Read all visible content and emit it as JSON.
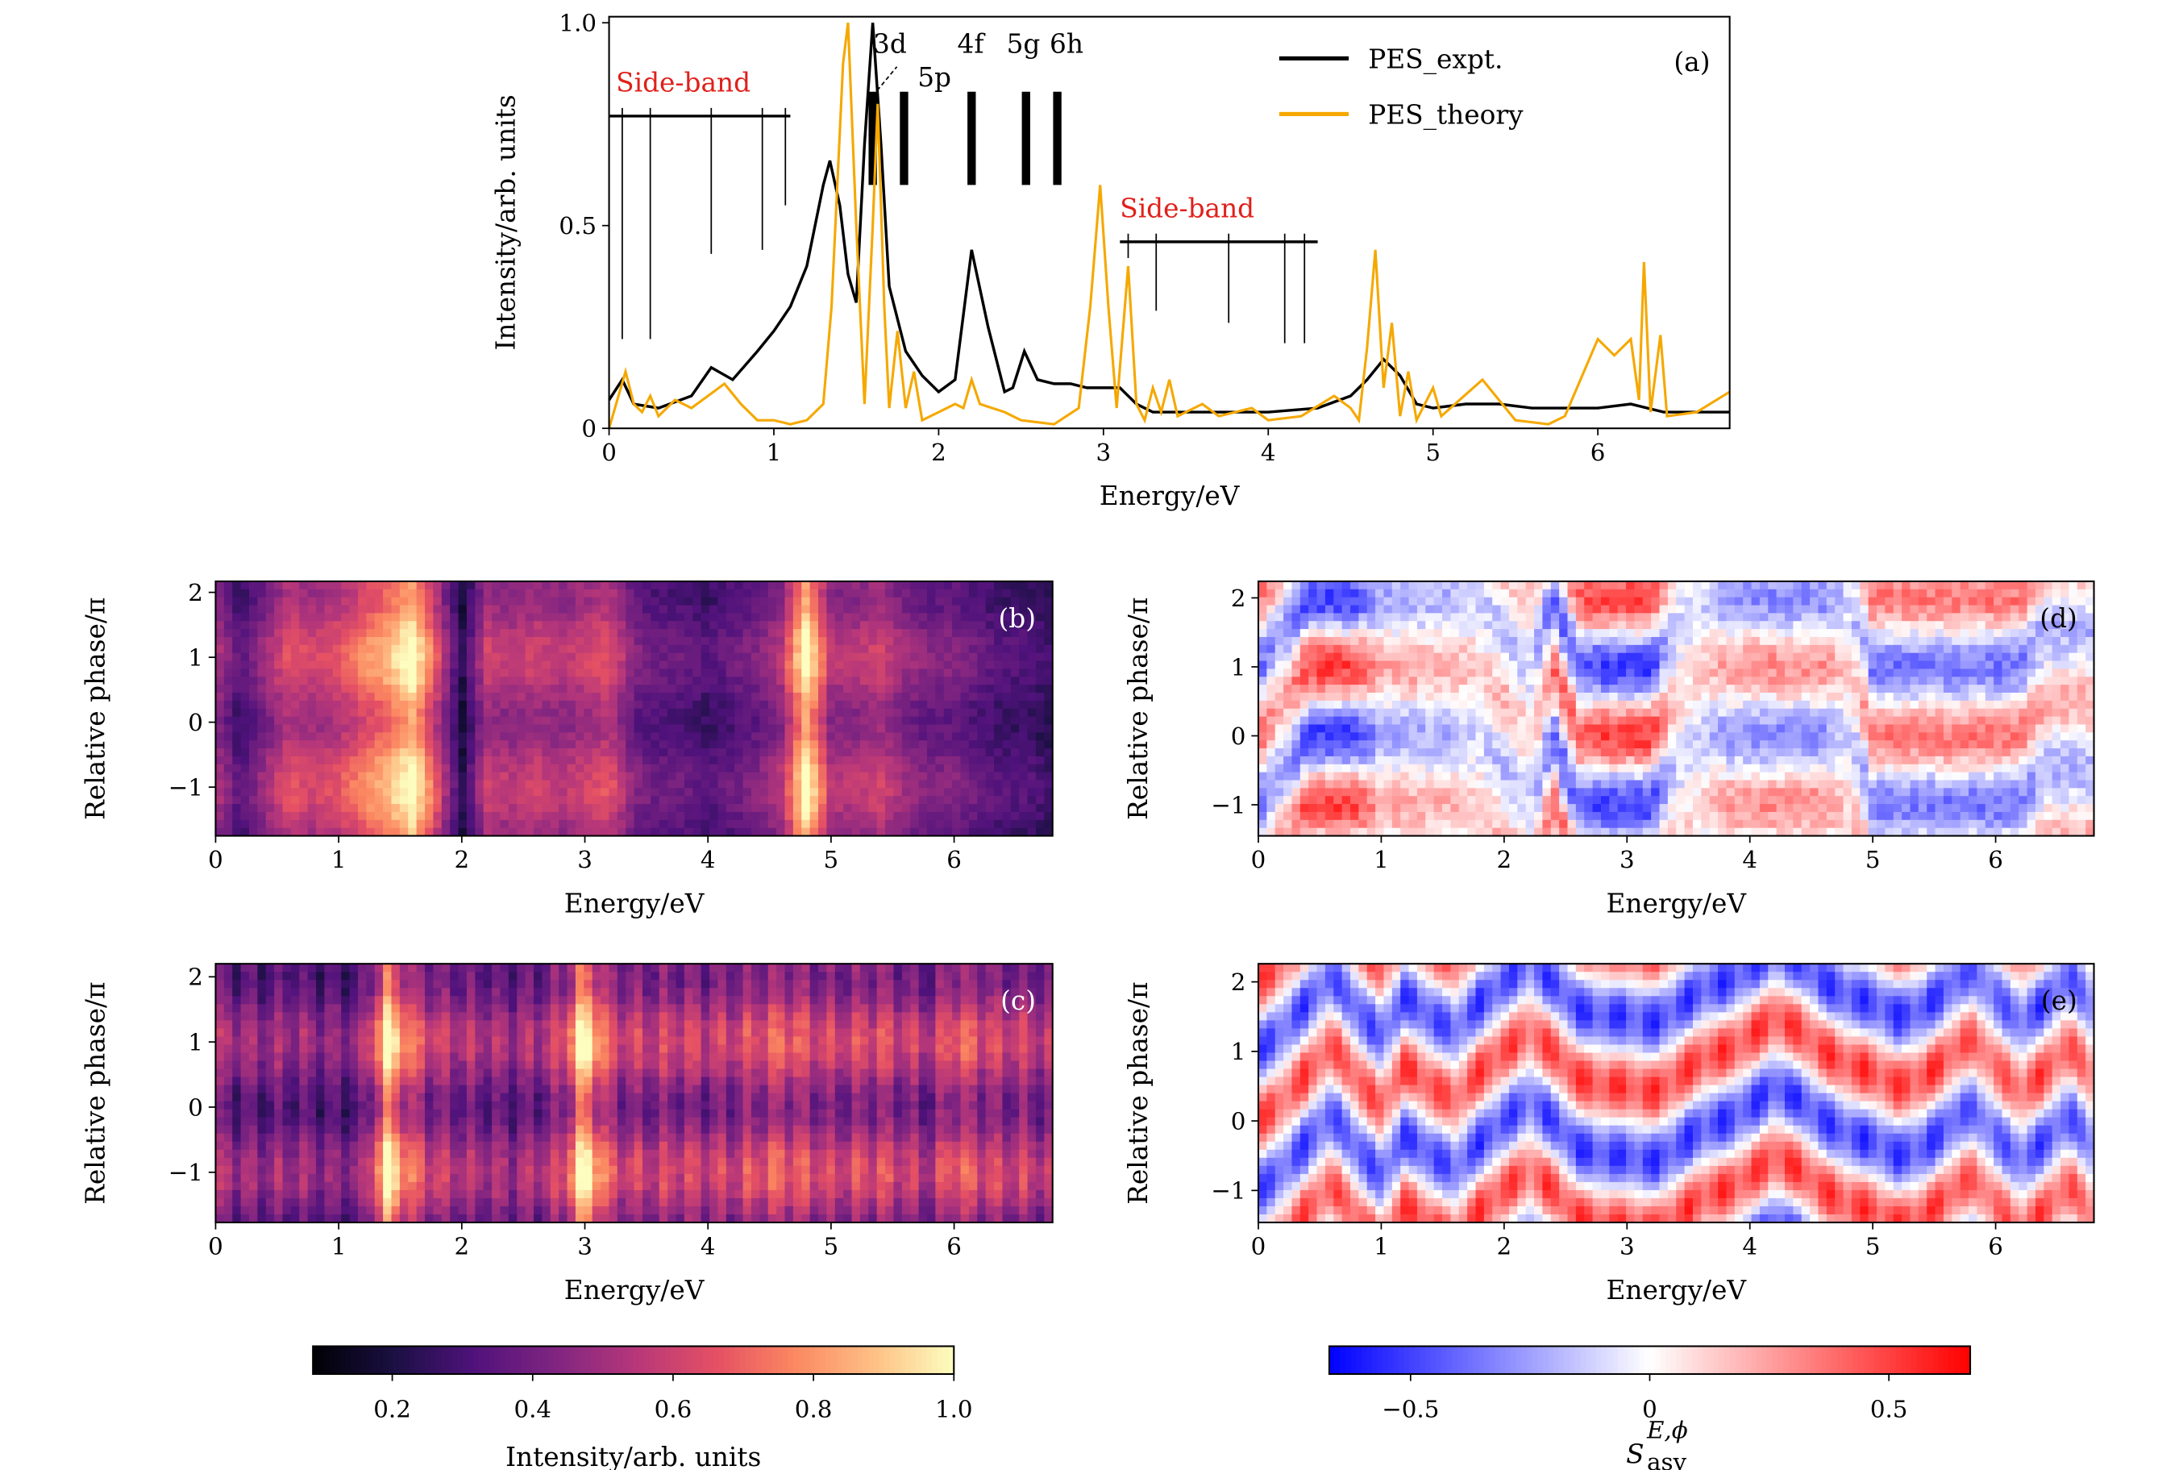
{
  "chart_data": [
    {
      "id": "a",
      "type": "line",
      "panel_label": "(a)",
      "xlabel": "Energy/eV",
      "ylabel": "Intensity/arb. units",
      "xlim": [
        0,
        6.8
      ],
      "ylim": [
        0,
        1.015
      ],
      "xticks": [
        "0",
        "1",
        "2",
        "3",
        "4",
        "5",
        "6"
      ],
      "yticks": [
        "0",
        "0.5",
        "1.0"
      ],
      "legend_position": "top-right",
      "series": [
        {
          "name": "PES_expt.",
          "color": "#000000",
          "points": [
            [
              0,
              0.07
            ],
            [
              0.08,
              0.12
            ],
            [
              0.15,
              0.06
            ],
            [
              0.3,
              0.05
            ],
            [
              0.5,
              0.08
            ],
            [
              0.62,
              0.15
            ],
            [
              0.75,
              0.12
            ],
            [
              0.9,
              0.19
            ],
            [
              1.0,
              0.24
            ],
            [
              1.1,
              0.3
            ],
            [
              1.2,
              0.4
            ],
            [
              1.3,
              0.6
            ],
            [
              1.34,
              0.66
            ],
            [
              1.4,
              0.55
            ],
            [
              1.45,
              0.38
            ],
            [
              1.5,
              0.31
            ],
            [
              1.55,
              0.7
            ],
            [
              1.6,
              1.0
            ],
            [
              1.65,
              0.7
            ],
            [
              1.7,
              0.35
            ],
            [
              1.8,
              0.19
            ],
            [
              1.9,
              0.13
            ],
            [
              2.0,
              0.09
            ],
            [
              2.1,
              0.12
            ],
            [
              2.2,
              0.44
            ],
            [
              2.3,
              0.25
            ],
            [
              2.4,
              0.09
            ],
            [
              2.45,
              0.1
            ],
            [
              2.52,
              0.19
            ],
            [
              2.6,
              0.12
            ],
            [
              2.7,
              0.11
            ],
            [
              2.8,
              0.11
            ],
            [
              2.9,
              0.1
            ],
            [
              3.1,
              0.1
            ],
            [
              3.2,
              0.06
            ],
            [
              3.3,
              0.04
            ],
            [
              3.5,
              0.04
            ],
            [
              4.0,
              0.04
            ],
            [
              4.3,
              0.05
            ],
            [
              4.5,
              0.08
            ],
            [
              4.6,
              0.12
            ],
            [
              4.7,
              0.17
            ],
            [
              4.8,
              0.13
            ],
            [
              4.9,
              0.06
            ],
            [
              5.0,
              0.05
            ],
            [
              5.2,
              0.06
            ],
            [
              5.4,
              0.06
            ],
            [
              5.6,
              0.05
            ],
            [
              6.0,
              0.05
            ],
            [
              6.2,
              0.06
            ],
            [
              6.4,
              0.04
            ],
            [
              6.8,
              0.04
            ]
          ]
        },
        {
          "name": "PES_theory",
          "color": "#f5a800",
          "points": [
            [
              0,
              0.0
            ],
            [
              0.1,
              0.14
            ],
            [
              0.15,
              0.06
            ],
            [
              0.2,
              0.04
            ],
            [
              0.25,
              0.08
            ],
            [
              0.3,
              0.03
            ],
            [
              0.4,
              0.07
            ],
            [
              0.5,
              0.05
            ],
            [
              0.6,
              0.08
            ],
            [
              0.7,
              0.11
            ],
            [
              0.8,
              0.06
            ],
            [
              0.9,
              0.02
            ],
            [
              1.0,
              0.02
            ],
            [
              1.1,
              0.01
            ],
            [
              1.2,
              0.02
            ],
            [
              1.3,
              0.06
            ],
            [
              1.35,
              0.3
            ],
            [
              1.42,
              0.9
            ],
            [
              1.45,
              1.0
            ],
            [
              1.5,
              0.5
            ],
            [
              1.55,
              0.06
            ],
            [
              1.6,
              0.5
            ],
            [
              1.63,
              0.8
            ],
            [
              1.67,
              0.3
            ],
            [
              1.7,
              0.05
            ],
            [
              1.75,
              0.24
            ],
            [
              1.8,
              0.05
            ],
            [
              1.85,
              0.14
            ],
            [
              1.9,
              0.02
            ],
            [
              2.0,
              0.04
            ],
            [
              2.1,
              0.06
            ],
            [
              2.15,
              0.05
            ],
            [
              2.2,
              0.12
            ],
            [
              2.25,
              0.06
            ],
            [
              2.4,
              0.04
            ],
            [
              2.5,
              0.02
            ],
            [
              2.7,
              0.01
            ],
            [
              2.85,
              0.05
            ],
            [
              2.92,
              0.3
            ],
            [
              2.98,
              0.6
            ],
            [
              3.03,
              0.3
            ],
            [
              3.08,
              0.05
            ],
            [
              3.15,
              0.4
            ],
            [
              3.2,
              0.06
            ],
            [
              3.25,
              0.02
            ],
            [
              3.3,
              0.1
            ],
            [
              3.35,
              0.04
            ],
            [
              3.4,
              0.12
            ],
            [
              3.45,
              0.03
            ],
            [
              3.6,
              0.06
            ],
            [
              3.7,
              0.03
            ],
            [
              3.9,
              0.05
            ],
            [
              4.0,
              0.02
            ],
            [
              4.2,
              0.03
            ],
            [
              4.4,
              0.08
            ],
            [
              4.5,
              0.05
            ],
            [
              4.55,
              0.02
            ],
            [
              4.6,
              0.2
            ],
            [
              4.65,
              0.44
            ],
            [
              4.7,
              0.1
            ],
            [
              4.75,
              0.26
            ],
            [
              4.8,
              0.03
            ],
            [
              4.85,
              0.14
            ],
            [
              4.9,
              0.02
            ],
            [
              5.0,
              0.1
            ],
            [
              5.05,
              0.03
            ],
            [
              5.3,
              0.12
            ],
            [
              5.4,
              0.07
            ],
            [
              5.5,
              0.02
            ],
            [
              5.7,
              0.01
            ],
            [
              5.8,
              0.03
            ],
            [
              6.0,
              0.22
            ],
            [
              6.1,
              0.18
            ],
            [
              6.2,
              0.22
            ],
            [
              6.25,
              0.07
            ],
            [
              6.28,
              0.41
            ],
            [
              6.32,
              0.04
            ],
            [
              6.38,
              0.23
            ],
            [
              6.42,
              0.03
            ],
            [
              6.6,
              0.04
            ],
            [
              6.8,
              0.09
            ]
          ]
        }
      ],
      "annotations": {
        "sidebands": [
          {
            "label": "Side-band",
            "level": 0.77,
            "x_range": [
              0,
              1.1
            ],
            "lines": [
              [
                0.08,
                0.22
              ],
              [
                0.25,
                0.22
              ],
              [
                0.62,
                0.43
              ],
              [
                0.93,
                0.44
              ],
              [
                1.07,
                0.55
              ]
            ]
          },
          {
            "label": "Side-band",
            "level": 0.46,
            "x_range": [
              3.1,
              4.3
            ],
            "lines": [
              [
                3.15,
                0.42
              ],
              [
                3.32,
                0.29
              ],
              [
                3.76,
                0.26
              ],
              [
                4.1,
                0.21
              ],
              [
                4.22,
                0.21
              ]
            ]
          }
        ],
        "states": [
          {
            "label": "3d",
            "energy": 1.6
          },
          {
            "label": "5p",
            "energy": 1.79
          },
          {
            "label": "4f",
            "energy": 2.2
          },
          {
            "label": "5g",
            "energy": 2.53
          },
          {
            "label": "6h",
            "energy": 2.72
          }
        ],
        "state_bar_range": [
          0.6,
          0.83
        ]
      }
    },
    {
      "id": "b",
      "type": "heatmap",
      "panel_label": "(b)",
      "colormap": "magma",
      "xlabel": "Energy/eV",
      "ylabel": "Relative phase/π",
      "xlim": [
        0,
        6.8
      ],
      "ylim": [
        -1.75,
        2.17
      ],
      "xticks": [
        "0",
        "1",
        "2",
        "3",
        "4",
        "5",
        "6"
      ],
      "yticks": [
        "−1",
        "0",
        "1",
        "2"
      ],
      "energy_step": 0.2,
      "intensity_profile": [
        0.5,
        0.3,
        0.45,
        0.6,
        0.55,
        0.6,
        0.7,
        0.8,
        0.95,
        0.6,
        0.2,
        0.55,
        0.5,
        0.55,
        0.5,
        0.55,
        0.6,
        0.4,
        0.35,
        0.35,
        0.3,
        0.35,
        0.4,
        0.5,
        0.95,
        0.5,
        0.5,
        0.55,
        0.45,
        0.4,
        0.4,
        0.35,
        0.3,
        0.3,
        0.25
      ],
      "phase_modulation": 0.12
    },
    {
      "id": "c",
      "type": "heatmap",
      "panel_label": "(c)",
      "colormap": "magma",
      "xlabel": "Energy/eV",
      "ylabel": "Relative phase/π",
      "xlim": [
        0,
        6.8
      ],
      "ylim": [
        -1.77,
        2.2
      ],
      "xticks": [
        "0",
        "1",
        "2",
        "3",
        "4",
        "5",
        "6"
      ],
      "yticks": [
        "−1",
        "0",
        "1",
        "2"
      ],
      "energy_step": 0.2,
      "intensity_profile": [
        0.45,
        0.42,
        0.4,
        0.42,
        0.4,
        0.38,
        0.4,
        0.88,
        0.6,
        0.5,
        0.45,
        0.45,
        0.42,
        0.45,
        0.5,
        0.9,
        0.55,
        0.5,
        0.5,
        0.52,
        0.5,
        0.5,
        0.55,
        0.6,
        0.55,
        0.5,
        0.52,
        0.55,
        0.5,
        0.45,
        0.6,
        0.55,
        0.5,
        0.5,
        0.45
      ],
      "phase_modulation": 0.2
    },
    {
      "id": "d",
      "type": "heatmap",
      "panel_label": "(d)",
      "colormap": "bwr",
      "xlabel": "Energy/eV",
      "ylabel": "Relative phase/π",
      "xlim": [
        0,
        6.8
      ],
      "ylim": [
        -1.45,
        2.24
      ],
      "xticks": [
        "0",
        "1",
        "2",
        "3",
        "4",
        "5",
        "6"
      ],
      "yticks": [
        "−1",
        "0",
        "1",
        "2"
      ],
      "energy_step": 0.2,
      "amplitude": [
        0.4,
        0.2,
        0.5,
        0.5,
        0.5,
        0.2,
        0.25,
        0.2,
        0.2,
        0.1,
        0.2,
        0.1,
        0.4,
        0.4,
        0.5,
        0.5,
        0.5,
        0.1,
        0.1,
        0.25,
        0.3,
        0.3,
        0.3,
        0.3,
        0.1,
        0.35,
        0.35,
        0.35,
        0.35,
        0.35,
        0.35,
        0.35,
        0.2,
        0.2,
        0.2
      ],
      "phase_offset": [
        0.0,
        0.5,
        1.0,
        1.0,
        1.0,
        1.0,
        1.0,
        1.0,
        1.0,
        1.0,
        0.5,
        0.0,
        1.0,
        0.0,
        0.0,
        0.0,
        0.0,
        0.5,
        1.0,
        1.0,
        1.0,
        1.0,
        1.0,
        1.0,
        1.0,
        0.0,
        0.0,
        0.0,
        0.0,
        0.0,
        0.0,
        0.0,
        0.5,
        0.5,
        0.5
      ]
    },
    {
      "id": "e",
      "type": "heatmap",
      "panel_label": "(e)",
      "colormap": "bwr",
      "xlabel": "Energy/eV",
      "ylabel": "Relative phase/π",
      "xlim": [
        0,
        6.8
      ],
      "ylim": [
        -1.46,
        2.26
      ],
      "xticks": [
        "0",
        "1",
        "2",
        "3",
        "4",
        "5",
        "6"
      ],
      "yticks": [
        "−1",
        "0",
        "1",
        "2"
      ],
      "energy_step": 0.2,
      "amplitude": [
        0.6,
        0.5,
        0.6,
        0.5,
        0.6,
        0.5,
        0.6,
        0.6,
        0.5,
        0.6,
        0.6,
        0.5,
        0.6,
        0.6,
        0.6,
        0.6,
        0.6,
        0.6,
        0.6,
        0.6,
        0.6,
        0.6,
        0.6,
        0.6,
        0.6,
        0.6,
        0.6,
        0.6,
        0.6,
        0.5,
        0.5,
        0.5,
        0.6,
        0.5,
        0.5
      ],
      "phase_offset": [
        0.0,
        0.3,
        0.7,
        1.1,
        0.6,
        0.2,
        0.8,
        0.5,
        0.3,
        0.7,
        1.0,
        1.3,
        1.0,
        0.6,
        0.5,
        0.5,
        0.4,
        0.6,
        0.9,
        1.0,
        1.2,
        1.5,
        1.3,
        1.0,
        0.8,
        0.7,
        0.5,
        0.6,
        0.9,
        1.2,
        0.8,
        0.4,
        0.7,
        1.1,
        0.6
      ]
    }
  ],
  "colorbars": [
    {
      "id": "intensity",
      "colormap": "magma",
      "range": [
        0.087,
        1.0
      ],
      "ticks": [
        "0.2",
        "0.4",
        "0.6",
        "0.8",
        "1.0"
      ],
      "tick_values": [
        0.2,
        0.4,
        0.6,
        0.8,
        1.0
      ],
      "label": "Intensity/arb. units"
    },
    {
      "id": "asymmetry",
      "colormap": "bwr",
      "range": [
        -0.67,
        0.67
      ],
      "ticks": [
        "−0.5",
        "0",
        "0.5"
      ],
      "tick_values": [
        -0.5,
        0,
        0.5
      ],
      "label": "S",
      "label_superscript": "E,ϕ",
      "label_subscript": "asy"
    }
  ]
}
